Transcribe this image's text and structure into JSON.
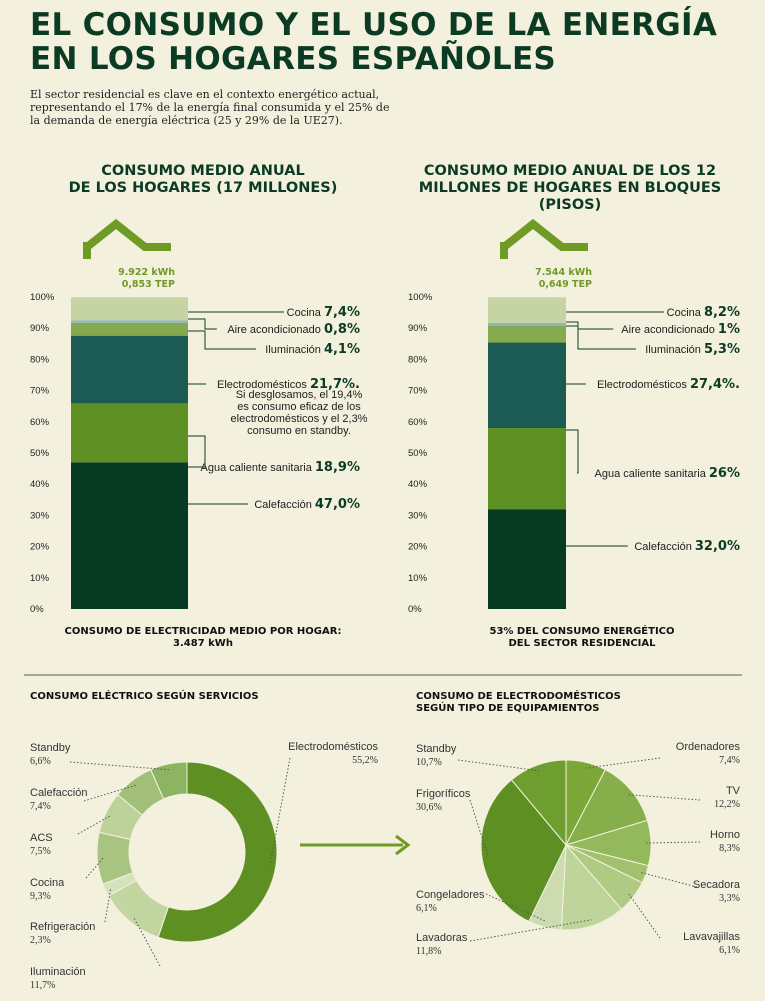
{
  "title_line1": "EL CONSUMO Y EL USO DE LA ENERGÍA",
  "title_line2": "EN LOS HOGARES ESPAÑOLES",
  "intro": "El sector residencial es clave en el contexto energético actual, representando el 17% de la energía final consumida y el 25% de la demanda de energía eléctrica (25 y 29% de la UE27).",
  "colors": {
    "calefaccion": "#063a23",
    "agua": "#5e8f22",
    "electro": "#1c5b53",
    "iluminacion": "#86a84f",
    "aire": "#8fb8b6",
    "cocina": "#c6d3a2"
  },
  "chart_data": [
    {
      "type": "bar",
      "title": "CONSUMO MEDIO ANUAL DE LOS HOGARES (17 MILLONES)",
      "title_lines": [
        "CONSUMO MEDIO ANUAL",
        "DE LOS HOGARES (17 MILLONES)"
      ],
      "kwh": "9.922 kWh",
      "tep": "0,853 TEP",
      "ylim": [
        0,
        100
      ],
      "yticks": [
        "0%",
        "10%",
        "20%",
        "30%",
        "40%",
        "50%",
        "60%",
        "70%",
        "80%",
        "90%",
        "100%"
      ],
      "segments": [
        {
          "name": "Calefacción",
          "value": 47.0,
          "label": "47,0%",
          "color_key": "calefaccion"
        },
        {
          "name": "Agua caliente sanitaria",
          "value": 18.9,
          "label": "18,9%",
          "color_key": "agua"
        },
        {
          "name": "Electrodomésticos",
          "value": 21.7,
          "label": "21,7%.",
          "color_key": "electro"
        },
        {
          "name": "Iluminación",
          "value": 4.1,
          "label": "4,1%",
          "color_key": "iluminacion"
        },
        {
          "name": "Aire acondicionado",
          "value": 0.8,
          "label": "0,8%",
          "color_key": "aire"
        },
        {
          "name": "Cocina",
          "value": 7.4,
          "label": "7,4%",
          "color_key": "cocina"
        }
      ],
      "note_lines": [
        "Si desglosamos, el 19,4%",
        "es consumo eficaz de los",
        "electrodomésticos y el 2,3%",
        "consumo en standby."
      ],
      "footer_lines": [
        "CONSUMO DE ELECTRICIDAD MEDIO POR HOGAR:",
        "3.487 kWh"
      ]
    },
    {
      "type": "bar",
      "title": "CONSUMO MEDIO ANUAL DE LOS 12 MILLONES DE HOGARES EN BLOQUES (PISOS)",
      "title_lines": [
        "CONSUMO MEDIO ANUAL DE LOS 12",
        "MILLONES DE HOGARES EN BLOQUES",
        "(PISOS)"
      ],
      "kwh": "7.544 kWh",
      "tep": "0,649 TEP",
      "ylim": [
        0,
        100
      ],
      "yticks": [
        "0%",
        "10%",
        "20%",
        "30%",
        "40%",
        "50%",
        "60%",
        "70%",
        "80%",
        "90%",
        "100%"
      ],
      "segments": [
        {
          "name": "Calefacción",
          "value": 32.0,
          "label": "32,0%",
          "color_key": "calefaccion"
        },
        {
          "name": "Agua caliente sanitaria",
          "value": 26,
          "label": "26%",
          "color_key": "agua"
        },
        {
          "name": "Electrodomésticos",
          "value": 27.4,
          "label": "27,4%.",
          "color_key": "electro"
        },
        {
          "name": "Iluminación",
          "value": 5.3,
          "label": "5,3%",
          "color_key": "iluminacion"
        },
        {
          "name": "Aire acondicionado",
          "value": 1,
          "label": "1%",
          "color_key": "aire"
        },
        {
          "name": "Cocina",
          "value": 8.2,
          "label": "8,2%",
          "color_key": "cocina"
        }
      ],
      "footer_lines": [
        "53% DEL CONSUMO ENERGÉTICO",
        "DEL SECTOR RESIDENCIAL"
      ]
    },
    {
      "type": "pie",
      "title": "CONSUMO ELÉCTRICO SEGÚN SERVICIOS",
      "donut": true,
      "slices": [
        {
          "name": "Electrodomésticos",
          "value": 55.2,
          "label": "55,2%",
          "color": "#5e8f22"
        },
        {
          "name": "Iluminación",
          "value": 11.7,
          "label": "11,7%",
          "color": "#c3d5a1"
        },
        {
          "name": "Refrigeración",
          "value": 2.3,
          "label": "2,3%",
          "color": "#d6e1be"
        },
        {
          "name": "Cocina",
          "value": 9.3,
          "label": "9,3%",
          "color": "#a8c480"
        },
        {
          "name": "ACS",
          "value": 7.5,
          "label": "7,5%",
          "color": "#bcd29a"
        },
        {
          "name": "Calefacción",
          "value": 7.4,
          "label": "7,4%",
          "color": "#a2bf78"
        },
        {
          "name": "Standby",
          "value": 6.6,
          "label": "6,6%",
          "color": "#8db462"
        }
      ]
    },
    {
      "type": "pie",
      "title": "CONSUMO DE ELECTRODOMÉSTICOS SEGÚN TIPO DE EQUIPAMIENTOS",
      "title_lines": [
        "CONSUMO DE ELECTRODOMÉSTICOS",
        "SEGÚN TIPO DE EQUIPAMIENTOS"
      ],
      "slices": [
        {
          "name": "Ordenadores",
          "value": 7.4,
          "label": "7,4%",
          "color": "#7ba839"
        },
        {
          "name": "TV",
          "value": 12.2,
          "label": "12,2%",
          "color": "#86ae4a"
        },
        {
          "name": "Horno",
          "value": 8.3,
          "label": "8,3%",
          "color": "#94b85c"
        },
        {
          "name": "Secadora",
          "value": 3.3,
          "label": "3,3%",
          "color": "#a2c16e"
        },
        {
          "name": "Lavavajillas",
          "value": 6.1,
          "label": "6,1%",
          "color": "#afca82"
        },
        {
          "name": "Lavadoras",
          "value": 11.8,
          "label": "11,8%",
          "color": "#bfd49a"
        },
        {
          "name": "Congeladores",
          "value": 6.1,
          "label": "6,1%",
          "color": "#cddcb0"
        },
        {
          "name": "Frigoríficos",
          "value": 30.6,
          "label": "30,6%",
          "color": "#5e8f22"
        },
        {
          "name": "Standby",
          "value": 10.7,
          "label": "10,7%",
          "color": "#6e9d30"
        }
      ]
    }
  ]
}
